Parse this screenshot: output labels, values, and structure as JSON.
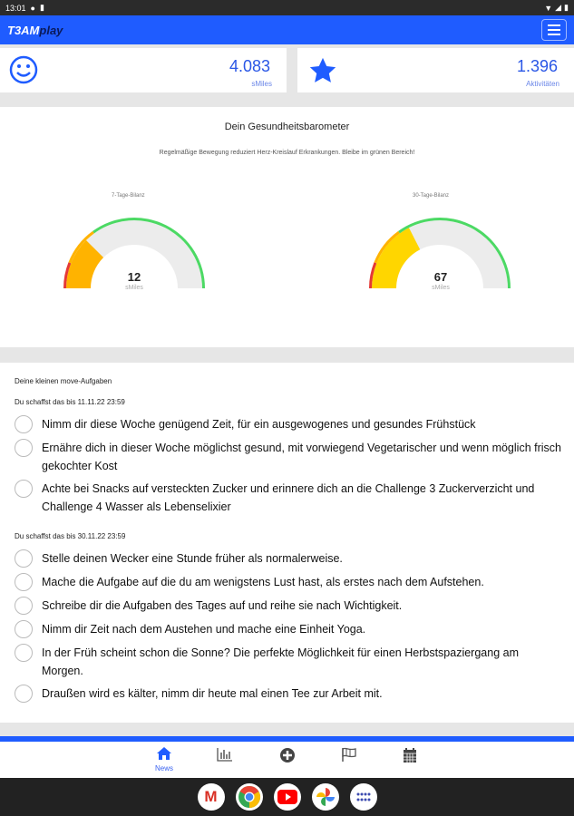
{
  "status_bar": {
    "time": "13:01"
  },
  "header": {
    "logo_team": "T3AM",
    "logo_play": "play"
  },
  "stats": [
    {
      "value": "4.083",
      "label": "sMiles",
      "icon": "smiley-icon"
    },
    {
      "value": "1.396",
      "label": "Aktivitäten",
      "icon": "star-icon"
    }
  ],
  "barometer": {
    "title": "Dein Gesundheitsbarometer",
    "subtitle": "Regelmäßige Bewegung reduziert Herz-Kreislauf Erkrankungen. Bleibe im grünen Bereich!",
    "gauges": [
      {
        "label": "7-Tage-Bilanz",
        "value": "12",
        "unit": "sMiles",
        "fill_fraction": 0.25,
        "fill_color": "#FFB300"
      },
      {
        "label": "30-Tage-Bilanz",
        "value": "67",
        "unit": "sMiles",
        "fill_fraction": 0.35,
        "fill_color": "#FFD600"
      }
    ],
    "zone_colors": {
      "red": "#E53935",
      "orange": "#FFB300",
      "green": "#4CD964"
    }
  },
  "tasks": {
    "heading": "Deine kleinen move-Aufgaben",
    "groups": [
      {
        "deadline": "Du schaffst das bis 11.11.22 23:59",
        "items": [
          "Nimm dir diese Woche genügend Zeit, für ein ausgewogenes und gesundes Frühstück",
          "Ernähre dich in dieser Woche möglichst gesund, mit vorwiegend Vegetarischer und wenn möglich frisch gekochter Kost",
          "Achte bei Snacks auf versteckten Zucker und erinnere dich an die Challenge 3 Zuckerverzicht und Challenge 4 Wasser als Lebenselixier"
        ]
      },
      {
        "deadline": "Du schaffst das bis 30.11.22 23:59",
        "items": [
          "Stelle deinen Wecker eine Stunde früher als normalerweise.",
          "Mache die Aufgabe auf die du am wenigstens Lust hast, als erstes nach dem Aufstehen.",
          "Schreibe dir die Aufgaben des Tages auf und reihe sie nach Wichtigkeit.",
          "Nimm dir Zeit nach dem Austehen und mache eine Einheit Yoga.",
          "In der Früh scheint schon die Sonne? Die perfekte Möglichkeit für einen Herbstspaziergang am Morgen.",
          "Draußen wird es kälter, nimm dir heute mal einen Tee zur Arbeit mit."
        ]
      }
    ]
  },
  "bottom_nav": [
    {
      "icon": "home-icon",
      "label": "News",
      "active": true
    },
    {
      "icon": "chart-icon"
    },
    {
      "icon": "plus-circle-icon"
    },
    {
      "icon": "flag-icon"
    },
    {
      "icon": "calendar-icon"
    }
  ],
  "dock": [
    "gmail",
    "chrome",
    "youtube",
    "photos",
    "app-drawer"
  ],
  "colors": {
    "brand": "#1F5CFF"
  }
}
